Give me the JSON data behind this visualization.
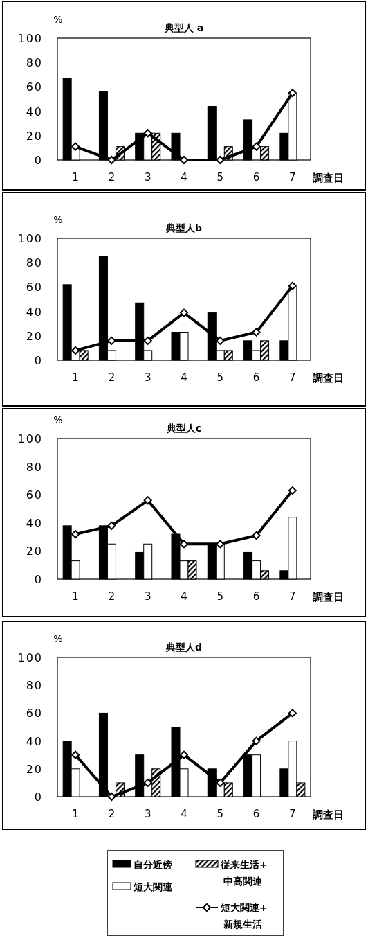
{
  "chart_data": [
    {
      "type": "bar",
      "title": "典型人 a",
      "xlabel": "調査日",
      "ylabel": "%",
      "categories": [
        "1",
        "2",
        "3",
        "4",
        "5",
        "6",
        "7"
      ],
      "ylim": [
        0,
        100
      ],
      "yticks": [
        0,
        20,
        40,
        60,
        80,
        100
      ],
      "grid": false,
      "legend": false,
      "series": [
        {
          "color": "#000000",
          "values": [
            67,
            56,
            22,
            22,
            44,
            33,
            22
          ]
        },
        {
          "color": "#ffffff",
          "values": [
            11,
            0,
            22,
            0,
            0,
            0,
            55
          ]
        },
        {
          "color": "#000000",
          "values": [
            0,
            11,
            22,
            0,
            11,
            11,
            0
          ]
        },
        {
          "type": "line",
          "color": "#000000",
          "marker": "diamond",
          "values": [
            11,
            0,
            22,
            0,
            0,
            11,
            55
          ]
        }
      ]
    },
    {
      "type": "bar",
      "title": "典型人b",
      "xlabel": "調査日",
      "ylabel": "%",
      "categories": [
        "1",
        "2",
        "3",
        "4",
        "5",
        "6",
        "7"
      ],
      "ylim": [
        0,
        100
      ],
      "yticks": [
        0,
        20,
        40,
        60,
        80,
        100
      ],
      "grid": false,
      "legend": false,
      "series": [
        {
          "color": "#000000",
          "values": [
            62,
            85,
            47,
            23,
            39,
            16,
            16
          ]
        },
        {
          "color": "#ffffff",
          "values": [
            8,
            8,
            8,
            23,
            8,
            8,
            60
          ]
        },
        {
          "color": "#000000",
          "values": [
            8,
            0,
            0,
            0,
            8,
            16,
            0
          ]
        },
        {
          "type": "line",
          "color": "#000000",
          "marker": "diamond",
          "values": [
            8,
            16,
            16,
            39,
            16,
            23,
            61
          ]
        }
      ]
    },
    {
      "type": "bar",
      "title": "典型人c",
      "xlabel": "調査日",
      "ylabel": "%",
      "categories": [
        "1",
        "2",
        "3",
        "4",
        "5",
        "6",
        "7"
      ],
      "ylim": [
        0,
        100
      ],
      "yticks": [
        0,
        20,
        40,
        60,
        80,
        100
      ],
      "grid": false,
      "legend": false,
      "series": [
        {
          "color": "#000000",
          "values": [
            38,
            38,
            19,
            32,
            25,
            19,
            6
          ]
        },
        {
          "color": "#ffffff",
          "values": [
            13,
            25,
            25,
            13,
            25,
            13,
            44
          ]
        },
        {
          "color": "#000000",
          "values": [
            0,
            0,
            0,
            13,
            0,
            6,
            0
          ]
        },
        {
          "type": "line",
          "color": "#000000",
          "marker": "diamond",
          "values": [
            32,
            38,
            56,
            25,
            25,
            31,
            63
          ]
        }
      ]
    },
    {
      "type": "bar",
      "title": "典型人d",
      "xlabel": "調査日",
      "ylabel": "%",
      "categories": [
        "1",
        "2",
        "3",
        "4",
        "5",
        "6",
        "7"
      ],
      "ylim": [
        0,
        100
      ],
      "yticks": [
        0,
        20,
        40,
        60,
        80,
        100
      ],
      "grid": false,
      "legend": "bottom",
      "series": [
        {
          "name": "自分近傍",
          "color": "#000000",
          "values": [
            40,
            60,
            30,
            50,
            20,
            30,
            20
          ]
        },
        {
          "name": "短大関連",
          "color": "#ffffff",
          "values": [
            20,
            0,
            0,
            20,
            10,
            30,
            40
          ]
        },
        {
          "name": "従来生活+中高関連",
          "color": "#000000",
          "values": [
            0,
            10,
            20,
            0,
            10,
            0,
            10
          ]
        },
        {
          "name": "短大関連+新規生活",
          "type": "line",
          "color": "#000000",
          "marker": "diamond",
          "values": [
            30,
            0,
            10,
            30,
            10,
            40,
            60
          ]
        }
      ]
    }
  ]
}
